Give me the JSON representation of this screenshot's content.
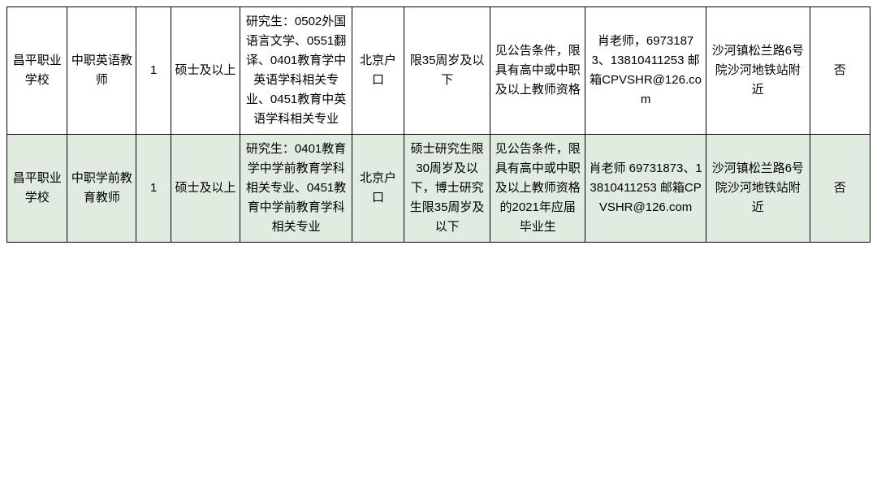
{
  "table": {
    "background_color": "#ffffff",
    "alt_row_background": "#e1ece1",
    "border_color": "#000000",
    "text_color": "#000000",
    "font_size": 15,
    "rows": [
      {
        "school": "昌平职业学校",
        "position": "中职英语教师",
        "count": "1",
        "degree": "硕士及以上",
        "major": "研究生：0502外国语言文学、0551翻译、0401教育学中英语学科相关专业、0451教育中英语学科相关专业",
        "hukou": "北京户口",
        "age": "限35周岁及以下",
        "requirement": "见公告条件，限具有高中或中职及以上教师资格",
        "contact": "肖老师，69731873、13810411253 邮箱CPVSHR@126.com",
        "address": "沙河镇松兰路6号院沙河地铁站附近",
        "flag": "否"
      },
      {
        "school": "昌平职业学校",
        "position": "中职学前教育教师",
        "count": "1",
        "degree": "硕士及以上",
        "major": "研究生：0401教育学中学前教育学科相关专业、0451教育中学前教育学科相关专业",
        "hukou": "北京户口",
        "age": "硕士研究生限30周岁及以下，博士研究生限35周岁及以下",
        "requirement": "见公告条件，限具有高中或中职及以上教师资格的2021年应届毕业生",
        "contact": "肖老师 69731873、13810411253 邮箱CPVSHR@126.com",
        "address": "沙河镇松兰路6号院沙河地铁站附近",
        "flag": "否"
      }
    ]
  }
}
